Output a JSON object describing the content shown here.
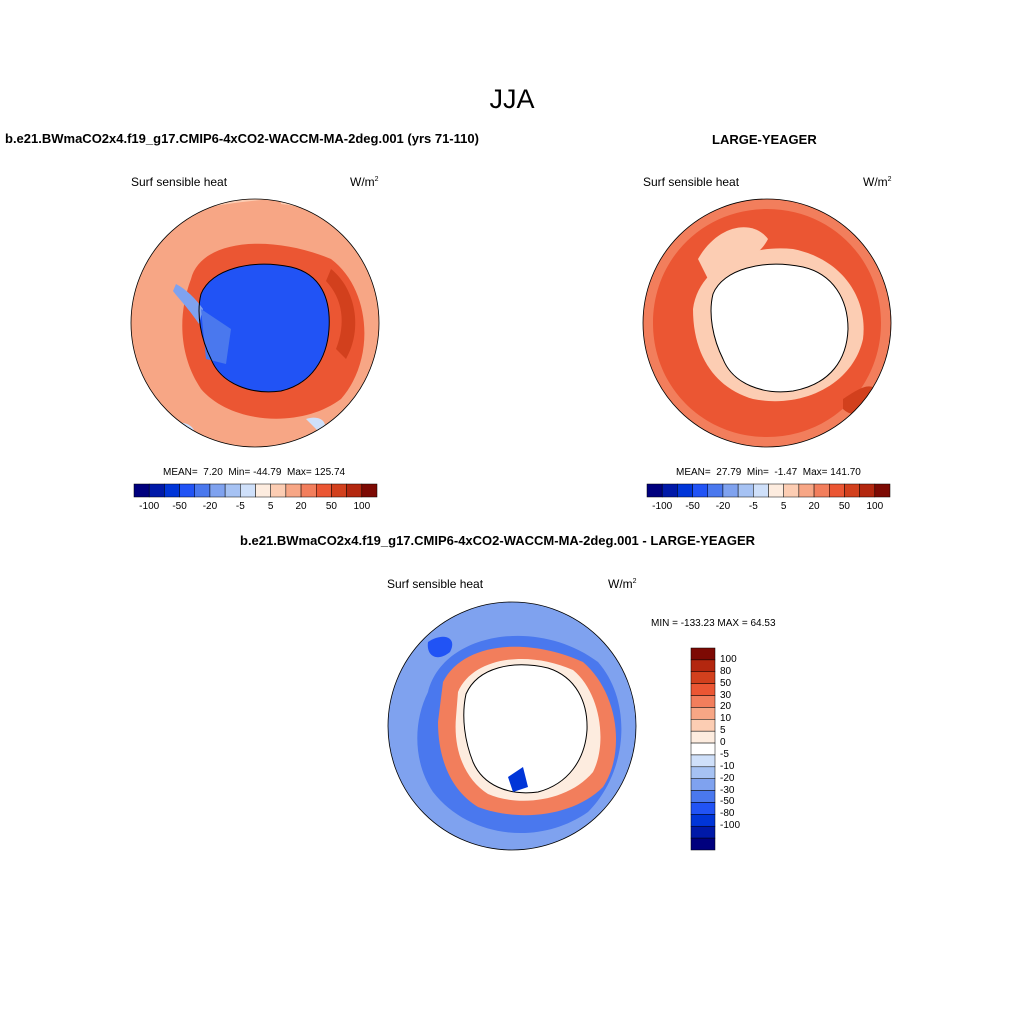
{
  "figure": {
    "title": "JJA"
  },
  "colors": {
    "scale": [
      "#00007e",
      "#0019a8",
      "#0035d8",
      "#2153f5",
      "#4a78ee",
      "#7fa2ef",
      "#a6c2f3",
      "#cfe0fa",
      "#fdecdf",
      "#fccdb3",
      "#f7a685",
      "#f27e5c",
      "#eb5633",
      "#d2401d",
      "#b3270f",
      "#7d0a04"
    ],
    "diff_scale": [
      "#00007e",
      "#0019a8",
      "#0035d8",
      "#2153f5",
      "#4a78ee",
      "#7fa2ef",
      "#a6c2f3",
      "#cfe0fa",
      "#ffffff",
      "#fdecdf",
      "#fccdb3",
      "#f7a685",
      "#f27e5c",
      "#eb5633",
      "#d2401d",
      "#b3270f",
      "#7d0a04"
    ],
    "land": "#ffffff",
    "coastline": "#000000"
  },
  "panels": [
    {
      "title": "b.e21.BWmaCO2x4.f19_g17.CMIP6-4xCO2-WACCM-MA-2deg.001 (yrs 71-110)",
      "variable": "Surf sensible heat",
      "units_base": "W/m",
      "units_exp": "2",
      "stats": {
        "mean_label": "MEAN=",
        "mean": "7.20",
        "min_label": "Min=",
        "min": "-44.79",
        "max_label": "Max=",
        "max": "125.74"
      },
      "colorbar_labels": [
        "-100",
        "-50",
        "-20",
        "-5",
        "5",
        "20",
        "50",
        "100"
      ]
    },
    {
      "title": "LARGE-YEAGER",
      "variable": "Surf sensible heat",
      "units_base": "W/m",
      "units_exp": "2",
      "stats": {
        "mean_label": "MEAN=",
        "mean": "27.79",
        "min_label": "Min=",
        "min": "-1.47",
        "max_label": "Max=",
        "max": "141.70"
      },
      "colorbar_labels": [
        "-100",
        "-50",
        "-20",
        "-5",
        "5",
        "20",
        "50",
        "100"
      ]
    }
  ],
  "diff_panel": {
    "title": "b.e21.BWmaCO2x4.f19_g17.CMIP6-4xCO2-WACCM-MA-2deg.001 - LARGE-YEAGER",
    "variable": "Surf sensible heat",
    "units_base": "W/m",
    "units_exp": "2",
    "minmax": "MIN = -133.23 MAX =  64.53",
    "colorbar_labels": [
      "100",
      "80",
      "50",
      "30",
      "20",
      "10",
      "5",
      "0",
      "-5",
      "-10",
      "-20",
      "-30",
      "-50",
      "-80",
      "-100"
    ]
  }
}
